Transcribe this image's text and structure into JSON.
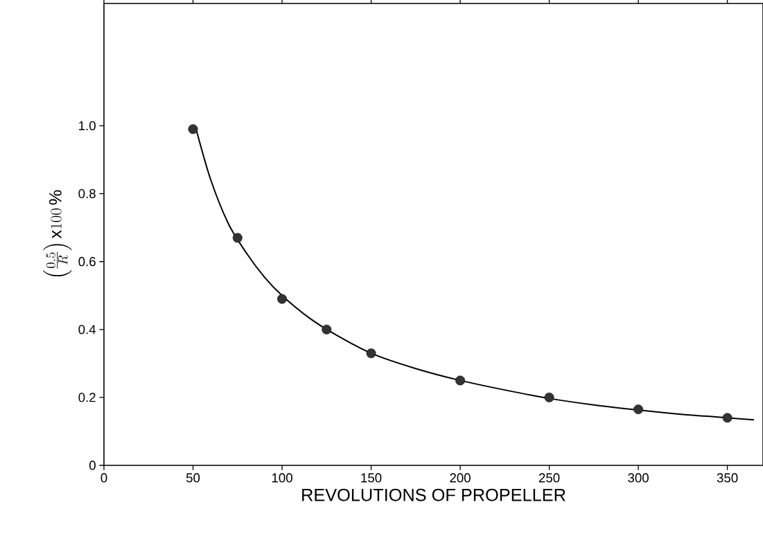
{
  "chart_data": {
    "type": "scatter",
    "xlabel": "REVOLUTIONS OF PROPELLER",
    "ylabel": "\\left(\\frac{0.5}{R}\\right)\\mathrm{x}100\\,\\%",
    "xlim": [
      0,
      370
    ],
    "ylim": [
      0,
      1.36
    ],
    "xticks": [
      0,
      50,
      100,
      150,
      200,
      250,
      300,
      350
    ],
    "yticks": [
      0,
      0.2,
      0.4,
      0.6,
      0.8,
      {
        "value": 1,
        "label": "1.0"
      }
    ],
    "grid": false,
    "series": [
      {
        "color": "#333333",
        "marker": "circle",
        "x": [
          50,
          75,
          100,
          125,
          150,
          200,
          250,
          300,
          350
        ],
        "values": [
          0.99,
          0.67,
          0.49,
          0.4,
          0.33,
          0.25,
          0.2,
          0.165,
          0.14
        ]
      },
      {
        "type": "line",
        "color": "#000000",
        "line_style": "solid",
        "x": [
          52,
          60,
          70,
          80,
          90,
          100,
          115,
          130,
          150,
          175,
          200,
          225,
          250,
          275,
          300,
          325,
          350,
          365
        ],
        "values": [
          0.985,
          0.84,
          0.71,
          0.625,
          0.555,
          0.5,
          0.435,
          0.385,
          0.33,
          0.285,
          0.25,
          0.222,
          0.197,
          0.178,
          0.163,
          0.15,
          0.14,
          0.134
        ]
      }
    ]
  }
}
